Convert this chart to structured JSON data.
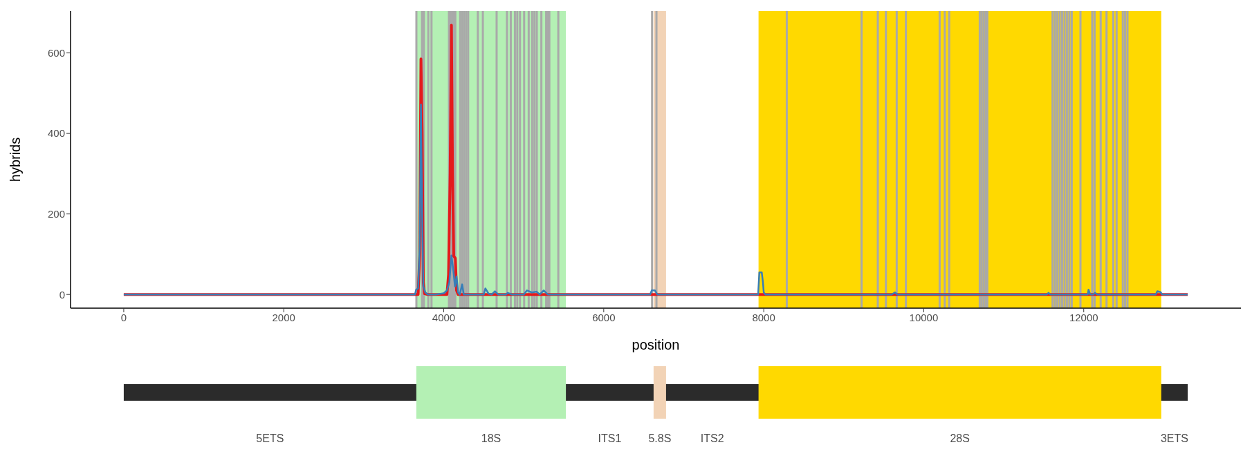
{
  "chart_data": {
    "type": "line",
    "xlabel": "position",
    "ylabel": "hybrids",
    "xlim": [
      -665,
      13965
    ],
    "xticks": [
      0,
      2000,
      4000,
      6000,
      8000,
      10000,
      12000
    ],
    "ylim": [
      -34,
      704
    ],
    "yticks": [
      0,
      200,
      400,
      600
    ],
    "grid": false,
    "marker": "none",
    "line_style": "solid",
    "series": [
      {
        "color": "#e41a1c",
        "x": [
          0,
          3680,
          3700,
          3715,
          3730,
          3745,
          3760,
          3800,
          4040,
          4060,
          4080,
          4096,
          4110,
          4125,
          4145,
          4160,
          4180,
          13300
        ],
        "values": [
          0,
          0,
          100,
          585,
          400,
          30,
          2,
          0,
          0,
          50,
          300,
          669,
          300,
          95,
          90,
          10,
          0,
          0
        ]
      },
      {
        "color": "#377eb8",
        "x": [
          0,
          3640,
          3655,
          3680,
          3700,
          3715,
          3730,
          3745,
          3770,
          3800,
          3900,
          4000,
          4040,
          4070,
          4096,
          4120,
          4140,
          4160,
          4180,
          4200,
          4230,
          4250,
          4500,
          4520,
          4560,
          4600,
          4640,
          4680,
          4780,
          4800,
          4850,
          5000,
          5040,
          5100,
          5160,
          5200,
          5250,
          5300,
          5600,
          6580,
          6600,
          6640,
          6670,
          7930,
          7945,
          7975,
          7990,
          8000,
          8020,
          9600,
          9640,
          9670,
          11540,
          11560,
          11580,
          12050,
          12060,
          12080,
          12120,
          12140,
          12170,
          12900,
          12920,
          12960,
          12980,
          13300
        ],
        "values": [
          0,
          0,
          12,
          15,
          120,
          472,
          200,
          20,
          5,
          0,
          0,
          3,
          10,
          30,
          97,
          60,
          20,
          45,
          5,
          0,
          25,
          0,
          0,
          15,
          2,
          0,
          8,
          0,
          0,
          4,
          0,
          0,
          10,
          5,
          7,
          0,
          10,
          0,
          0,
          0,
          10,
          10,
          0,
          0,
          55,
          55,
          30,
          5,
          0,
          0,
          5,
          0,
          0,
          4,
          0,
          0,
          12,
          0,
          0,
          4,
          0,
          0,
          8,
          6,
          0,
          0
        ]
      }
    ],
    "bands": [
      {
        "axis": "x",
        "from": 3657,
        "to": 5527,
        "color": "#b4f0b4"
      },
      {
        "axis": "x",
        "from": 6623,
        "to": 6779,
        "color": "#f2d3b6"
      },
      {
        "axis": "x",
        "from": 7935,
        "to": 12969,
        "color": "#ffd900"
      }
    ],
    "ref_lines": [
      {
        "axis": "x",
        "value": 3658,
        "color": "#a9a9a9"
      },
      {
        "axis": "x",
        "value": 3729,
        "color": "#a9a9a9"
      },
      {
        "axis": "x",
        "value": 3752,
        "color": "#a9a9a9"
      },
      {
        "axis": "x",
        "value": 3807,
        "color": "#a9a9a9"
      },
      {
        "axis": "x",
        "value": 3847,
        "color": "#a9a9a9"
      },
      {
        "axis": "x",
        "value": 4065,
        "color": "#a9a9a9"
      },
      {
        "axis": "x",
        "value": 4085,
        "color": "#a9a9a9"
      },
      {
        "axis": "x",
        "value": 4105,
        "color": "#a9a9a9"
      },
      {
        "axis": "x",
        "value": 4125,
        "color": "#a9a9a9"
      },
      {
        "axis": "x",
        "value": 4145,
        "color": "#a9a9a9"
      },
      {
        "axis": "x",
        "value": 4205,
        "color": "#a9a9a9"
      },
      {
        "axis": "x",
        "value": 4230,
        "color": "#a9a9a9"
      },
      {
        "axis": "x",
        "value": 4255,
        "color": "#a9a9a9"
      },
      {
        "axis": "x",
        "value": 4280,
        "color": "#a9a9a9"
      },
      {
        "axis": "x",
        "value": 4305,
        "color": "#a9a9a9"
      },
      {
        "axis": "x",
        "value": 4426,
        "color": "#a9a9a9"
      },
      {
        "axis": "x",
        "value": 4489,
        "color": "#a9a9a9"
      },
      {
        "axis": "x",
        "value": 4661,
        "color": "#a9a9a9"
      },
      {
        "axis": "x",
        "value": 4790,
        "color": "#a9a9a9"
      },
      {
        "axis": "x",
        "value": 4838,
        "color": "#a9a9a9"
      },
      {
        "axis": "x",
        "value": 4890,
        "color": "#a9a9a9"
      },
      {
        "axis": "x",
        "value": 4919,
        "color": "#a9a9a9"
      },
      {
        "axis": "x",
        "value": 4953,
        "color": "#a9a9a9"
      },
      {
        "axis": "x",
        "value": 5005,
        "color": "#a9a9a9"
      },
      {
        "axis": "x",
        "value": 5062,
        "color": "#a9a9a9"
      },
      {
        "axis": "x",
        "value": 5105,
        "color": "#a9a9a9"
      },
      {
        "axis": "x",
        "value": 5134,
        "color": "#a9a9a9"
      },
      {
        "axis": "x",
        "value": 5163,
        "color": "#a9a9a9"
      },
      {
        "axis": "x",
        "value": 5220,
        "color": "#a9a9a9"
      },
      {
        "axis": "x",
        "value": 5280,
        "color": "#a9a9a9"
      },
      {
        "axis": "x",
        "value": 5300,
        "color": "#a9a9a9"
      },
      {
        "axis": "x",
        "value": 5320,
        "color": "#a9a9a9"
      },
      {
        "axis": "x",
        "value": 5432,
        "color": "#a9a9a9"
      },
      {
        "axis": "x",
        "value": 6604,
        "color": "#a9a9a9"
      },
      {
        "axis": "x",
        "value": 6659,
        "color": "#a9a9a9"
      },
      {
        "axis": "x",
        "value": 8288,
        "color": "#a9a9a9"
      },
      {
        "axis": "x",
        "value": 9223,
        "color": "#a9a9a9"
      },
      {
        "axis": "x",
        "value": 9426,
        "color": "#a9a9a9"
      },
      {
        "axis": "x",
        "value": 9527,
        "color": "#a9a9a9"
      },
      {
        "axis": "x",
        "value": 9662,
        "color": "#a9a9a9"
      },
      {
        "axis": "x",
        "value": 9777,
        "color": "#a9a9a9"
      },
      {
        "axis": "x",
        "value": 10199,
        "color": "#a9a9a9"
      },
      {
        "axis": "x",
        "value": 10263,
        "color": "#a9a9a9"
      },
      {
        "axis": "x",
        "value": 10318,
        "color": "#a9a9a9"
      },
      {
        "axis": "x",
        "value": 10700,
        "color": "#a9a9a9"
      },
      {
        "axis": "x",
        "value": 10725,
        "color": "#a9a9a9"
      },
      {
        "axis": "x",
        "value": 10750,
        "color": "#a9a9a9"
      },
      {
        "axis": "x",
        "value": 10775,
        "color": "#a9a9a9"
      },
      {
        "axis": "x",
        "value": 10795,
        "color": "#a9a9a9"
      },
      {
        "axis": "x",
        "value": 11610,
        "color": "#a9a9a9"
      },
      {
        "axis": "x",
        "value": 11640,
        "color": "#a9a9a9"
      },
      {
        "axis": "x",
        "value": 11670,
        "color": "#a9a9a9"
      },
      {
        "axis": "x",
        "value": 11700,
        "color": "#a9a9a9"
      },
      {
        "axis": "x",
        "value": 11730,
        "color": "#a9a9a9"
      },
      {
        "axis": "x",
        "value": 11760,
        "color": "#a9a9a9"
      },
      {
        "axis": "x",
        "value": 11790,
        "color": "#a9a9a9"
      },
      {
        "axis": "x",
        "value": 11820,
        "color": "#a9a9a9"
      },
      {
        "axis": "x",
        "value": 11850,
        "color": "#a9a9a9"
      },
      {
        "axis": "x",
        "value": 11959,
        "color": "#a9a9a9"
      },
      {
        "axis": "x",
        "value": 12106,
        "color": "#a9a9a9"
      },
      {
        "axis": "x",
        "value": 12136,
        "color": "#a9a9a9"
      },
      {
        "axis": "x",
        "value": 12212,
        "color": "#a9a9a9"
      },
      {
        "axis": "x",
        "value": 12285,
        "color": "#a9a9a9"
      },
      {
        "axis": "x",
        "value": 12369,
        "color": "#a9a9a9"
      },
      {
        "axis": "x",
        "value": 12411,
        "color": "#a9a9a9"
      },
      {
        "axis": "x",
        "value": 12488,
        "color": "#a9a9a9"
      },
      {
        "axis": "x",
        "value": 12517,
        "color": "#a9a9a9"
      },
      {
        "axis": "x",
        "value": 12547,
        "color": "#a9a9a9"
      }
    ],
    "annotations": [
      "5ETS",
      "18S",
      "ITS1",
      "5.8S",
      "ITS2",
      "28S",
      "3ETS"
    ]
  }
}
